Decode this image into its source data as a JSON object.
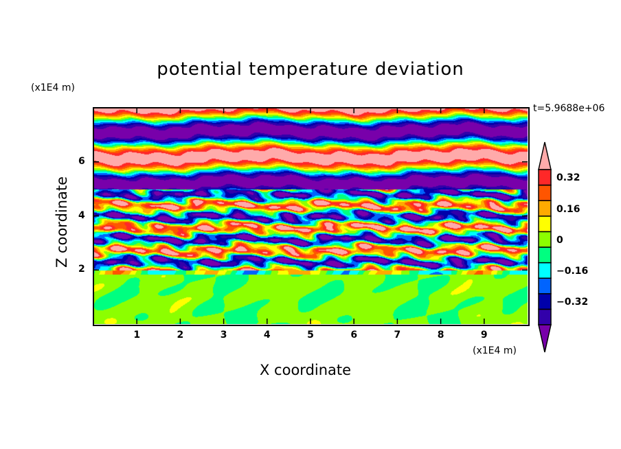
{
  "chart_data": {
    "type": "heatmap",
    "title": "potential temperature deviation",
    "xlabel": "X coordinate",
    "ylabel": "Z coordinate",
    "x_unit": "(x1E4 m)",
    "y_unit": "(x1E4 m)",
    "xlim": [
      0,
      10
    ],
    "ylim": [
      0,
      8
    ],
    "xticks": [
      1,
      2,
      3,
      4,
      5,
      6,
      7,
      8,
      9
    ],
    "yticks": [
      2,
      4,
      6
    ],
    "time_label": "t=5.9688e+06",
    "colorbar": {
      "levels": [
        -0.4,
        -0.32,
        -0.24,
        -0.16,
        -0.08,
        0,
        0.08,
        0.16,
        0.24,
        0.32,
        0.4
      ],
      "tick_labels": [
        "0.32",
        "0.16",
        "0",
        "−0.16",
        "−0.32"
      ],
      "tick_values": [
        0.32,
        0.16,
        0,
        -0.16,
        -0.32
      ],
      "colors": [
        "#7800aa",
        "#3200aa",
        "#0000aa",
        "#0064ff",
        "#00ffff",
        "#00ff80",
        "#8cff00",
        "#ffff00",
        "#ffaa00",
        "#ff5500",
        "#ff2828",
        "#ffaaaa"
      ],
      "extend": "both"
    }
  }
}
